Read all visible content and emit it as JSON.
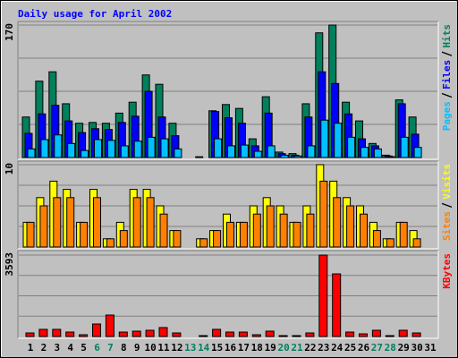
{
  "chart_data": [
    {
      "type": "bar",
      "title": "Daily usage for April 2002",
      "title_color": "#0000ff",
      "ylim": [
        0,
        170
      ],
      "yticks": [
        170
      ],
      "series": [
        {
          "name": "Hits",
          "color": "#00805c",
          "values": [
            52,
            98,
            110,
            69,
            44,
            45,
            44,
            57,
            71,
            106,
            94,
            44,
            0,
            1,
            60,
            68,
            63,
            24,
            78,
            7,
            5,
            69,
            160,
            170,
            71,
            47,
            18,
            3,
            74,
            52,
            0
          ]
        },
        {
          "name": "Files",
          "color": "#0000ff",
          "values": [
            31,
            56,
            67,
            47,
            32,
            37,
            36,
            45,
            53,
            85,
            52,
            28,
            0,
            0,
            59,
            51,
            44,
            15,
            57,
            5,
            3,
            52,
            110,
            95,
            56,
            24,
            15,
            2,
            69,
            30,
            0
          ]
        },
        {
          "name": "Pages",
          "color": "#00c0ff",
          "values": [
            11,
            23,
            29,
            18,
            9,
            23,
            22,
            15,
            21,
            26,
            24,
            11,
            0,
            0,
            24,
            15,
            16,
            8,
            15,
            3,
            2,
            15,
            48,
            44,
            26,
            13,
            11,
            1,
            26,
            13,
            0
          ]
        }
      ]
    },
    {
      "type": "bar",
      "ylim": [
        0,
        10
      ],
      "yticks": [
        10
      ],
      "series": [
        {
          "name": "Visits",
          "color": "#ffff00",
          "values": [
            3,
            6,
            8,
            7,
            3,
            7,
            1,
            3,
            7,
            7,
            5,
            2,
            0,
            1,
            2,
            4,
            3,
            5,
            6,
            5,
            3,
            5,
            10,
            8,
            6,
            5,
            3,
            1,
            3,
            2,
            0
          ]
        },
        {
          "name": "Sites",
          "color": "#ff8000",
          "values": [
            3,
            5,
            6,
            6,
            3,
            6,
            1,
            2,
            6,
            6,
            4,
            2,
            0,
            1,
            2,
            3,
            3,
            4,
            5,
            4,
            3,
            4,
            8,
            6,
            5,
            4,
            2,
            1,
            3,
            1,
            0
          ]
        }
      ]
    },
    {
      "type": "bar",
      "ylim": [
        0,
        3593
      ],
      "yticks": [
        3593
      ],
      "categories": [
        "1",
        "2",
        "3",
        "4",
        "5",
        "6",
        "7",
        "8",
        "9",
        "10",
        "11",
        "12",
        "13",
        "14",
        "15",
        "16",
        "17",
        "18",
        "19",
        "20",
        "21",
        "22",
        "23",
        "24",
        "25",
        "26",
        "27",
        "28",
        "29",
        "30",
        "31"
      ],
      "category_colors": [
        "#000000",
        "#000000",
        "#000000",
        "#000000",
        "#000000",
        "#00805c",
        "#00805c",
        "#000000",
        "#000000",
        "#000000",
        "#000000",
        "#000000",
        "#00805c",
        "#00805c",
        "#000000",
        "#000000",
        "#000000",
        "#000000",
        "#000000",
        "#00805c",
        "#00805c",
        "#000000",
        "#000000",
        "#000000",
        "#000000",
        "#000000",
        "#00805c",
        "#00805c",
        "#000000",
        "#000000",
        "#000000"
      ],
      "series": [
        {
          "name": "KBytes",
          "color": "#ff0000",
          "values": [
            158,
            316,
            316,
            197,
            79,
            553,
            948,
            197,
            237,
            276,
            395,
            158,
            0,
            40,
            316,
            197,
            197,
            79,
            237,
            40,
            40,
            158,
            3593,
            2764,
            197,
            118,
            276,
            40,
            276,
            158,
            0
          ]
        }
      ]
    }
  ]
}
